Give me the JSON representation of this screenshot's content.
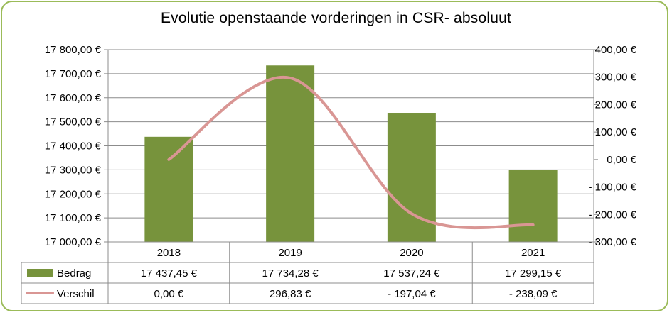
{
  "chart_data": {
    "type": "bar",
    "title": "Evolutie openstaande vorderingen in CSR- absoluut",
    "categories": [
      "2018",
      "2019",
      "2020",
      "2021"
    ],
    "series": [
      {
        "name": "Bedrag",
        "type": "bar",
        "axis": "left",
        "color": "#77933c",
        "values": [
          17437.45,
          17734.28,
          17537.24,
          17299.15
        ],
        "labels": [
          "17 437,45 €",
          "17 734,28 €",
          "17 537,24 €",
          "17 299,15 €"
        ]
      },
      {
        "name": "Verschil",
        "type": "line",
        "axis": "right",
        "color": "#d99694",
        "values": [
          0.0,
          296.83,
          -197.04,
          -238.09
        ],
        "labels": [
          "0,00 €",
          "296,83 €",
          "- 197,04 €",
          "- 238,09 €"
        ]
      }
    ],
    "y_left": {
      "ylim": [
        17000,
        17800
      ],
      "ticks": [
        17000,
        17100,
        17200,
        17300,
        17400,
        17500,
        17600,
        17700,
        17800
      ],
      "tick_labels": [
        "17 000,00 €",
        "17 100,00 €",
        "17 200,00 €",
        "17 300,00 €",
        "17 400,00 €",
        "17 500,00 €",
        "17 600,00 €",
        "17 700,00 €",
        "17 800,00 €"
      ]
    },
    "y_right": {
      "ylim": [
        -300,
        400
      ],
      "ticks": [
        -300,
        -200,
        -100,
        0,
        100,
        200,
        300,
        400
      ],
      "tick_labels": [
        "- 300,00 €",
        "- 200,00 €",
        "- 100,00 €",
        "0,00 €",
        "100,00 €",
        "200,00 €",
        "300,00 €",
        "400,00 €"
      ]
    },
    "grid": true,
    "legend": "data-table",
    "data_table": true
  }
}
